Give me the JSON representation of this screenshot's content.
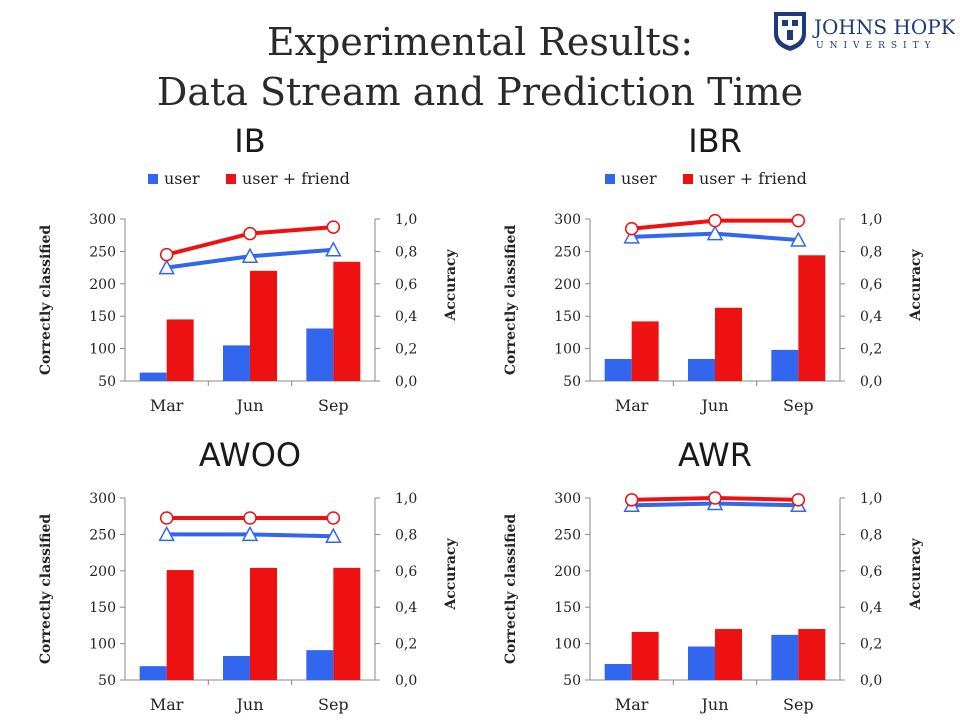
{
  "header": {
    "title_line1": "Experimental Results:",
    "title_line2": "Data Stream and Prediction Time",
    "logo": {
      "name": "JOHNS HOPKINS",
      "sub": "UNIVERSITY"
    }
  },
  "colors": {
    "user": "#3366ee",
    "friend": "#ee1111"
  },
  "chart_data": [
    {
      "type": "bar",
      "title": "IB",
      "categories": [
        "Mar",
        "Jun",
        "Sep"
      ],
      "ylabel": "Correctly classified",
      "y2label": "Accuracy",
      "ylim": [
        50,
        300
      ],
      "y2lim": [
        0.0,
        1.0
      ],
      "yticks": [
        "50",
        "100",
        "150",
        "200",
        "250",
        "300"
      ],
      "y2ticks": [
        "0,0",
        "0,2",
        "0,4",
        "0,6",
        "0,8",
        "1,0"
      ],
      "legend": [
        "user",
        "user + friend"
      ],
      "series": [
        {
          "name": "user",
          "values": [
            63,
            105,
            131
          ]
        },
        {
          "name": "user + friend",
          "values": [
            145,
            220,
            234
          ]
        }
      ],
      "accuracy": [
        {
          "name": "user",
          "values": [
            0.7,
            0.77,
            0.81
          ]
        },
        {
          "name": "user + friend",
          "values": [
            0.78,
            0.91,
            0.95
          ]
        }
      ]
    },
    {
      "type": "bar",
      "title": "IBR",
      "categories": [
        "Mar",
        "Jun",
        "Sep"
      ],
      "ylabel": "Correctly classified",
      "y2label": "Accuracy",
      "ylim": [
        50,
        300
      ],
      "y2lim": [
        0.0,
        1.0
      ],
      "yticks": [
        "50",
        "100",
        "150",
        "200",
        "250",
        "300"
      ],
      "y2ticks": [
        "0,0",
        "0,2",
        "0,4",
        "0,6",
        "0,8",
        "1,0"
      ],
      "legend": [
        "user",
        "user + friend"
      ],
      "series": [
        {
          "name": "user",
          "values": [
            84,
            84,
            98
          ]
        },
        {
          "name": "user + friend",
          "values": [
            142,
            163,
            244
          ]
        }
      ],
      "accuracy": [
        {
          "name": "user",
          "values": [
            0.89,
            0.91,
            0.87
          ]
        },
        {
          "name": "user + friend",
          "values": [
            0.94,
            0.99,
            0.99
          ]
        }
      ]
    },
    {
      "type": "bar",
      "title": "AWOO",
      "categories": [
        "Mar",
        "Jun",
        "Sep"
      ],
      "ylabel": "Correctly classified",
      "y2label": "Accuracy",
      "ylim": [
        50,
        300
      ],
      "y2lim": [
        0.0,
        1.0
      ],
      "yticks": [
        "50",
        "100",
        "150",
        "200",
        "250",
        "300"
      ],
      "y2ticks": [
        "0,0",
        "0,2",
        "0,4",
        "0,6",
        "0,8",
        "1,0"
      ],
      "series": [
        {
          "name": "user",
          "values": [
            69,
            83,
            91
          ]
        },
        {
          "name": "user + friend",
          "values": [
            201,
            204,
            204
          ]
        }
      ],
      "accuracy": [
        {
          "name": "user",
          "values": [
            0.8,
            0.8,
            0.79
          ]
        },
        {
          "name": "user + friend",
          "values": [
            0.89,
            0.89,
            0.89
          ]
        }
      ]
    },
    {
      "type": "bar",
      "title": "AWR",
      "categories": [
        "Mar",
        "Jun",
        "Sep"
      ],
      "ylabel": "Correctly classified",
      "y2label": "Accuracy",
      "ylim": [
        50,
        300
      ],
      "y2lim": [
        0.0,
        1.0
      ],
      "yticks": [
        "50",
        "100",
        "150",
        "200",
        "250",
        "300"
      ],
      "y2ticks": [
        "0,0",
        "0,2",
        "0,4",
        "0,6",
        "0,8",
        "1,0"
      ],
      "series": [
        {
          "name": "user",
          "values": [
            72,
            96,
            112
          ]
        },
        {
          "name": "user + friend",
          "values": [
            116,
            120,
            120
          ]
        }
      ],
      "accuracy": [
        {
          "name": "user",
          "values": [
            0.96,
            0.97,
            0.96
          ]
        },
        {
          "name": "user + friend",
          "values": [
            0.99,
            1.0,
            0.99
          ]
        }
      ]
    }
  ]
}
